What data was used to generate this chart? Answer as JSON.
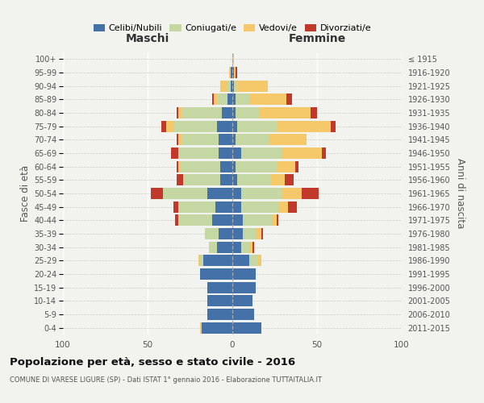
{
  "age_groups": [
    "0-4",
    "5-9",
    "10-14",
    "15-19",
    "20-24",
    "25-29",
    "30-34",
    "35-39",
    "40-44",
    "45-49",
    "50-54",
    "55-59",
    "60-64",
    "65-69",
    "70-74",
    "75-79",
    "80-84",
    "85-89",
    "90-94",
    "95-99",
    "100+"
  ],
  "birth_years": [
    "2011-2015",
    "2006-2010",
    "2001-2005",
    "1996-2000",
    "1991-1995",
    "1986-1990",
    "1981-1985",
    "1976-1980",
    "1971-1975",
    "1966-1970",
    "1961-1965",
    "1956-1960",
    "1951-1955",
    "1946-1950",
    "1941-1945",
    "1936-1940",
    "1931-1935",
    "1926-1930",
    "1921-1925",
    "1916-1920",
    "≤ 1915"
  ],
  "maschi": {
    "celibi": [
      18,
      15,
      15,
      15,
      19,
      17,
      9,
      8,
      12,
      10,
      15,
      7,
      7,
      8,
      8,
      9,
      6,
      3,
      1,
      1,
      0
    ],
    "coniugati": [
      0,
      0,
      0,
      0,
      0,
      2,
      5,
      8,
      20,
      22,
      26,
      22,
      24,
      24,
      22,
      26,
      24,
      6,
      2,
      0,
      0
    ],
    "vedovi": [
      1,
      0,
      0,
      0,
      0,
      1,
      0,
      0,
      0,
      0,
      0,
      0,
      1,
      0,
      2,
      4,
      2,
      2,
      4,
      1,
      0
    ],
    "divorziati": [
      0,
      0,
      0,
      0,
      0,
      0,
      0,
      0,
      2,
      3,
      7,
      4,
      1,
      4,
      1,
      3,
      1,
      1,
      0,
      0,
      0
    ]
  },
  "femmine": {
    "nubili": [
      17,
      13,
      12,
      14,
      14,
      10,
      5,
      6,
      6,
      5,
      5,
      3,
      2,
      5,
      2,
      3,
      2,
      2,
      1,
      1,
      0
    ],
    "coniugate": [
      0,
      0,
      0,
      0,
      0,
      5,
      5,
      8,
      18,
      22,
      24,
      20,
      24,
      24,
      20,
      23,
      14,
      8,
      2,
      0,
      0
    ],
    "vedove": [
      0,
      0,
      0,
      0,
      0,
      2,
      2,
      3,
      2,
      6,
      12,
      8,
      11,
      24,
      22,
      32,
      30,
      22,
      18,
      1,
      1
    ],
    "divorziate": [
      0,
      0,
      0,
      0,
      0,
      0,
      1,
      1,
      1,
      5,
      10,
      5,
      2,
      2,
      0,
      3,
      4,
      3,
      0,
      1,
      0
    ]
  },
  "colors": {
    "celibi": "#4472a8",
    "coniugati": "#c5d8a4",
    "vedovi": "#f5c96a",
    "divorziati": "#c0392b"
  },
  "title": "Popolazione per età, sesso e stato civile - 2016",
  "subtitle": "COMUNE DI VARESE LIGURE (SP) - Dati ISTAT 1° gennaio 2016 - Elaborazione TUTTAITALIA.IT",
  "label_maschi": "Maschi",
  "label_femmine": "Femmine",
  "ylabel_left": "Fasce di età",
  "ylabel_right": "Anni di nascita",
  "xlim": 100,
  "legend_labels": [
    "Celibi/Nubili",
    "Coniugati/e",
    "Vedovi/e",
    "Divorziati/e"
  ],
  "bg_color": "#f2f2ee",
  "grid_color": "#cccccc",
  "text_color": "#555555"
}
